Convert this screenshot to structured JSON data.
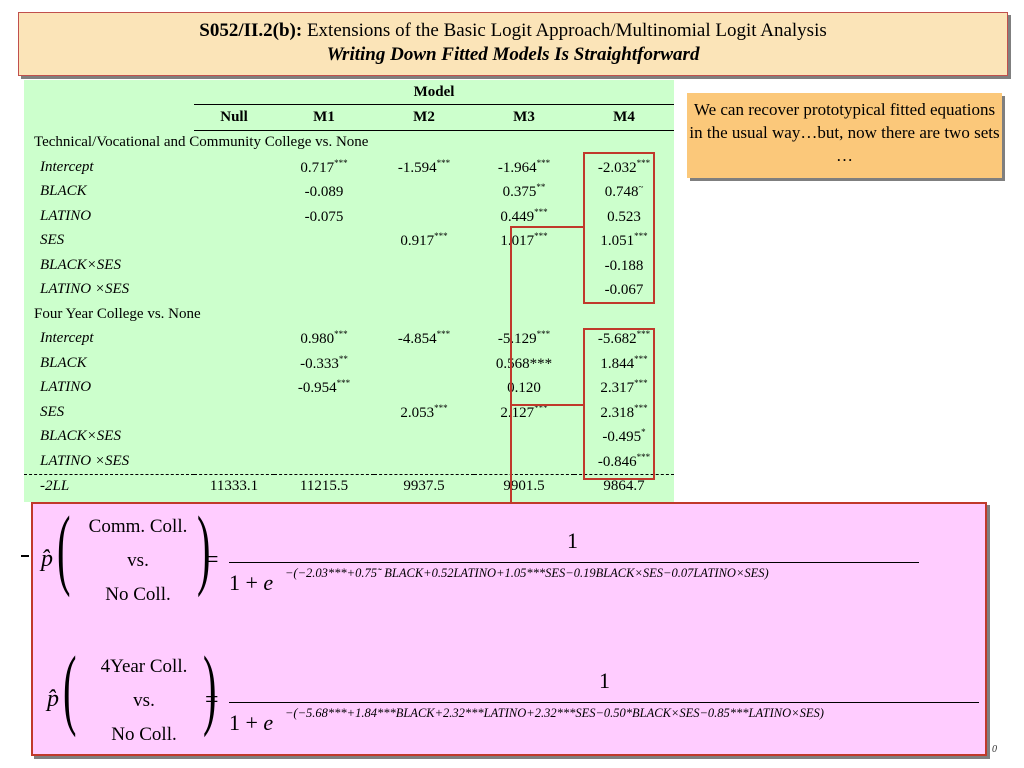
{
  "title": {
    "code": "S052/II.2(b):",
    "text": "Extensions of the Basic Logit Approach/Multinomial Logit Analysis",
    "subtitle": "Writing Down Fitted Models Is Straightforward"
  },
  "callout": {
    "text": "We can recover prototypical fitted equations in the usual way…but, now there are two sets …"
  },
  "table": {
    "model_header": "Model",
    "columns": [
      "Null",
      "M1",
      "M2",
      "M3",
      "M4"
    ],
    "section1": {
      "label": "Technical/Vocational and Community College vs. None",
      "rows": [
        {
          "var": "Intercept",
          "null": "",
          "m1": "0.717",
          "m1s": "***",
          "m2": "-1.594",
          "m2s": "***",
          "m3": "-1.964",
          "m3s": "***",
          "m4": "-2.032",
          "m4s": "***"
        },
        {
          "var": "BLACK",
          "null": "",
          "m1": "-0.089",
          "m1s": "",
          "m2": "",
          "m2s": "",
          "m3": "0.375",
          "m3s": "**",
          "m4": "0.748",
          "m4s": "~"
        },
        {
          "var": "LATINO",
          "null": "",
          "m1": "-0.075",
          "m1s": "",
          "m2": "",
          "m2s": "",
          "m3": "0.449",
          "m3s": "***",
          "m4": "0.523",
          "m4s": ""
        },
        {
          "var": "SES",
          "null": "",
          "m1": "",
          "m1s": "",
          "m2": "0.917",
          "m2s": "***",
          "m3": "1.017",
          "m3s": "***",
          "m4": "1.051",
          "m4s": "***"
        },
        {
          "var": "BLACK×SES",
          "null": "",
          "m1": "",
          "m1s": "",
          "m2": "",
          "m2s": "",
          "m3": "",
          "m3s": "",
          "m4": "-0.188",
          "m4s": ""
        },
        {
          "var": "LATINO ×SES",
          "null": "",
          "m1": "",
          "m1s": "",
          "m2": "",
          "m2s": "",
          "m3": "",
          "m3s": "",
          "m4": "-0.067",
          "m4s": ""
        }
      ]
    },
    "section2": {
      "label": "Four Year College vs. None",
      "rows": [
        {
          "var": "Intercept",
          "null": "",
          "m1": "0.980",
          "m1s": "***",
          "m2": "-4.854",
          "m2s": "***",
          "m3": "-5.129",
          "m3s": "***",
          "m4": "-5.682",
          "m4s": "***"
        },
        {
          "var": "BLACK",
          "null": "",
          "m1": "-0.333",
          "m1s": "**",
          "m2": "",
          "m2s": "",
          "m3": "0.568***",
          "m3s": "",
          "m4": "1.844",
          "m4s": "***"
        },
        {
          "var": "LATINO",
          "null": "",
          "m1": "-0.954",
          "m1s": "***",
          "m2": "",
          "m2s": "",
          "m3": "0.120",
          "m3s": "",
          "m4": "2.317",
          "m4s": "***"
        },
        {
          "var": "SES",
          "null": "",
          "m1": "",
          "m1s": "",
          "m2": "2.053",
          "m2s": "***",
          "m3": "2.127",
          "m3s": "***",
          "m4": "2.318",
          "m4s": "***"
        },
        {
          "var": "BLACK×SES",
          "null": "",
          "m1": "",
          "m1s": "",
          "m2": "",
          "m2s": "",
          "m3": "",
          "m3s": "",
          "m4": "-0.495",
          "m4s": "*"
        },
        {
          "var": "LATINO ×SES",
          "null": "",
          "m1": "",
          "m1s": "",
          "m2": "",
          "m2s": "",
          "m3": "",
          "m3s": "",
          "m4": "-0.846",
          "m4s": "***"
        }
      ]
    },
    "ll_row": {
      "var": "-2LL",
      "null": "11333.1",
      "m1": "11215.5",
      "m2": "9937.5",
      "m3": "9901.5",
      "m4": "9864.7"
    }
  },
  "formulas": {
    "phat": "p̂",
    "eq1": {
      "top": "Comm. Coll.",
      "mid": "vs.",
      "bot": "No Coll.",
      "numerator": "1",
      "denom_prefix": "1 + ",
      "e": "e",
      "exponent": "−(−2.03***+0.75˜ BLACK+0.52LATINO+1.05***SES−0.19BLACK×SES−0.07LATINO×SES)"
    },
    "eq2": {
      "top": "4Year Coll.",
      "mid": "vs.",
      "bot": "No Coll.",
      "numerator": "1",
      "denom_prefix": "1 + ",
      "e": "e",
      "exponent": "−(−5.68***+1.84***BLACK+2.32***LATINO+2.32***SES−0.50*BLACK×SES−0.85***LATINO×SES)"
    },
    "equals": "="
  },
  "page_number": "0"
}
